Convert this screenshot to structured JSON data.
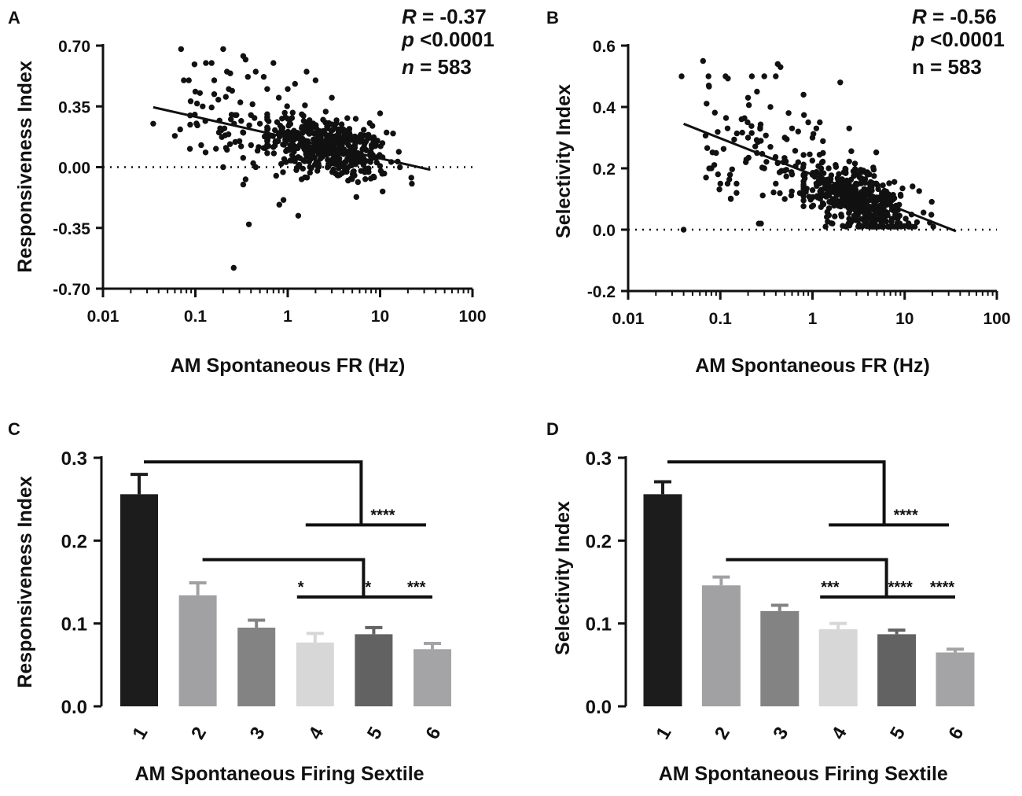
{
  "figure": {
    "colors": {
      "ink": "#111111",
      "bar_1": "#1c1c1c",
      "bar_2": "#a1a1a3",
      "bar_3": "#838384",
      "bar_4": "#d7d7d7",
      "bar_5": "#626262",
      "bar_6": "#a4a4a6"
    }
  },
  "chart_data": [
    {
      "panel": "A",
      "type": "scatter",
      "xscale": "log",
      "xlabel": "AM Spontaneous FR (Hz)",
      "ylabel": "Responsiveness Index",
      "xlim": [
        0.01,
        100
      ],
      "ylim": [
        -0.7,
        0.7
      ],
      "xticks": [
        0.01,
        0.1,
        1,
        10,
        100
      ],
      "xtick_labels": [
        "0.01",
        "0.1",
        "1",
        "10",
        "100"
      ],
      "yticks": [
        0.7,
        0.35,
        0.0,
        -0.35,
        -0.7
      ],
      "ytick_labels": [
        "0.70",
        "0.35",
        "0.00",
        "-0.35",
        "-0.70"
      ],
      "zero_line": true,
      "stats": {
        "r_symbol": "R",
        "r_value": "= -0.37",
        "p_symbol": "p",
        "p_value": "<0.0001",
        "n_symbol": "n",
        "n_value": "= 583"
      },
      "fit_line": {
        "x": [
          0.035,
          35
        ],
        "y": [
          0.345,
          -0.015
        ]
      },
      "points": {
        "n": 583,
        "cluster": {
          "center_log10_x": 0.45,
          "sd_log10_x": 0.32,
          "slope_per_decade": -0.12,
          "intercept_at_1Hz": 0.162,
          "residual_sd": 0.085,
          "share": 0.78,
          "x_min_hz": 0.6,
          "x_max_hz": 36,
          "y_min": -0.3,
          "y_max": 0.32
        },
        "scattered": [
          [
            0.035,
            0.25
          ],
          [
            0.06,
            0.18
          ],
          [
            0.07,
            0.68
          ],
          [
            0.075,
            0.5
          ],
          [
            0.085,
            0.5
          ],
          [
            0.12,
            0.35
          ],
          [
            0.13,
            0.6
          ],
          [
            0.15,
            0.6
          ],
          [
            0.16,
            0.5
          ],
          [
            0.2,
            0.68
          ],
          [
            0.22,
            0.55
          ],
          [
            0.23,
            0.45
          ],
          [
            0.25,
            0.44
          ],
          [
            0.27,
            0.3
          ],
          [
            0.33,
            0.64
          ],
          [
            0.35,
            0.62
          ],
          [
            0.37,
            0.52
          ],
          [
            0.45,
            0.55
          ],
          [
            0.55,
            0.52
          ],
          [
            0.6,
            0.45
          ],
          [
            0.7,
            0.6
          ],
          [
            0.8,
            0.4
          ],
          [
            1.0,
            0.45
          ],
          [
            1.2,
            0.48
          ],
          [
            1.6,
            0.55
          ],
          [
            2.0,
            0.5
          ],
          [
            3.0,
            0.4
          ],
          [
            10,
            0.31
          ],
          [
            0.18,
            0.2
          ],
          [
            0.22,
            0.1
          ],
          [
            0.3,
            0.15
          ],
          [
            0.33,
            -0.1
          ],
          [
            0.35,
            -0.07
          ],
          [
            0.38,
            -0.33
          ],
          [
            0.26,
            -0.58
          ],
          [
            0.5,
            0.25
          ],
          [
            0.4,
            0.3
          ],
          [
            0.6,
            0.08
          ],
          [
            0.9,
            0.2
          ],
          [
            1.3,
            -0.28
          ],
          [
            0.45,
            0.0
          ],
          [
            0.75,
            -0.05
          ],
          [
            0.2,
            0.0
          ]
        ]
      }
    },
    {
      "panel": "B",
      "type": "scatter",
      "xscale": "log",
      "xlabel": "AM Spontaneous FR (Hz)",
      "ylabel": "Selectivity Index",
      "xlim": [
        0.01,
        100
      ],
      "ylim": [
        -0.2,
        0.6
      ],
      "xticks": [
        0.01,
        0.1,
        1,
        10,
        100
      ],
      "xtick_labels": [
        "0.01",
        "0.1",
        "1",
        "10",
        "100"
      ],
      "yticks": [
        0.6,
        0.4,
        0.2,
        0.0,
        -0.2
      ],
      "ytick_labels": [
        "0.6",
        "0.4",
        "0.2",
        "0.0",
        "-0.2"
      ],
      "zero_line": true,
      "stats": {
        "r_symbol": "R",
        "r_value": "= -0.56",
        "p_symbol": "p",
        "p_value": "<0.0001",
        "n_symbol": "",
        "n_value": "n = 583"
      },
      "fit_line": {
        "x": [
          0.04,
          36
        ],
        "y": [
          0.345,
          -0.005
        ]
      },
      "points": {
        "n": 583,
        "cluster": {
          "center_log10_x": 0.5,
          "sd_log10_x": 0.3,
          "slope_per_decade": -0.1,
          "intercept_at_1Hz": 0.145,
          "residual_sd": 0.05,
          "share": 0.78,
          "x_min_hz": 0.8,
          "x_max_hz": 36,
          "y_min": 0.01,
          "y_max": 0.3
        },
        "scattered": [
          [
            0.038,
            0.5
          ],
          [
            0.04,
            0.0
          ],
          [
            0.065,
            0.55
          ],
          [
            0.07,
            0.17
          ],
          [
            0.075,
            0.47
          ],
          [
            0.08,
            0.2
          ],
          [
            0.09,
            0.25
          ],
          [
            0.1,
            0.15
          ],
          [
            0.12,
            0.15
          ],
          [
            0.13,
            0.1
          ],
          [
            0.15,
            0.15
          ],
          [
            0.17,
            0.36
          ],
          [
            0.2,
            0.43
          ],
          [
            0.22,
            0.5
          ],
          [
            0.25,
            0.45
          ],
          [
            0.3,
            0.5
          ],
          [
            0.35,
            0.4
          ],
          [
            0.4,
            0.5
          ],
          [
            0.42,
            0.54
          ],
          [
            0.45,
            0.53
          ],
          [
            0.5,
            0.3
          ],
          [
            0.55,
            0.38
          ],
          [
            0.6,
            0.33
          ],
          [
            0.7,
            0.32
          ],
          [
            0.8,
            0.44
          ],
          [
            0.9,
            0.35
          ],
          [
            1.0,
            0.3
          ],
          [
            1.1,
            0.33
          ],
          [
            1.2,
            0.35
          ],
          [
            2.0,
            0.48
          ],
          [
            0.25,
            0.25
          ],
          [
            0.3,
            0.2
          ],
          [
            0.35,
            0.27
          ],
          [
            0.2,
            0.3
          ],
          [
            0.15,
            0.12
          ],
          [
            0.12,
            0.33
          ],
          [
            0.6,
            0.18
          ],
          [
            0.7,
            0.22
          ],
          [
            0.5,
            0.1
          ],
          [
            1.5,
            0.2
          ],
          [
            0.4,
            0.15
          ],
          [
            1.3,
            0.25
          ],
          [
            2.5,
            0.33
          ]
        ]
      }
    },
    {
      "panel": "C",
      "type": "bar",
      "xlabel": "AM Spontaneous Firing Sextile",
      "ylabel": "Responsiveness Index",
      "categories": [
        "1",
        "2",
        "3",
        "4",
        "5",
        "6"
      ],
      "values": [
        0.256,
        0.134,
        0.095,
        0.077,
        0.087,
        0.069
      ],
      "errors": [
        0.024,
        0.015,
        0.009,
        0.011,
        0.008,
        0.007
      ],
      "ylim": [
        0.0,
        0.3
      ],
      "yticks": [
        0.0,
        0.1,
        0.2,
        0.3
      ],
      "ytick_labels": [
        "0.0",
        "0.1",
        "0.2",
        "0.3"
      ],
      "significance": [
        {
          "from": 1,
          "to_range": [
            4,
            6
          ],
          "y_top": 0.295,
          "y_bottom": 0.219,
          "labels": [
            {
              "text": "****",
              "at": 5
            }
          ]
        },
        {
          "from": 2,
          "to_range": [
            4,
            6
          ],
          "y_top": 0.177,
          "y_bottom": 0.132,
          "labels": [
            {
              "text": "*",
              "at": 4
            },
            {
              "text": "*",
              "at": 5
            },
            {
              "text": "***",
              "at": 6
            }
          ]
        }
      ]
    },
    {
      "panel": "D",
      "type": "bar",
      "xlabel": "AM Spontaneous Firing Sextile",
      "ylabel": "Selectivity Index",
      "categories": [
        "1",
        "2",
        "3",
        "4",
        "5",
        "6"
      ],
      "values": [
        0.256,
        0.146,
        0.115,
        0.093,
        0.087,
        0.065
      ],
      "errors": [
        0.015,
        0.01,
        0.007,
        0.007,
        0.005,
        0.004
      ],
      "ylim": [
        0.0,
        0.3
      ],
      "yticks": [
        0.0,
        0.1,
        0.2,
        0.3
      ],
      "ytick_labels": [
        "0.0",
        "0.1",
        "0.2",
        "0.3"
      ],
      "significance": [
        {
          "from": 1,
          "to_range": [
            4,
            6
          ],
          "y_top": 0.295,
          "y_bottom": 0.219,
          "labels": [
            {
              "text": "****",
              "at": 5
            }
          ]
        },
        {
          "from": 2,
          "to_range": [
            4,
            6
          ],
          "y_top": 0.177,
          "y_bottom": 0.132,
          "labels": [
            {
              "text": "***",
              "at": 4
            },
            {
              "text": "****",
              "at": 5
            },
            {
              "text": "****",
              "at": 6
            }
          ]
        }
      ]
    }
  ]
}
